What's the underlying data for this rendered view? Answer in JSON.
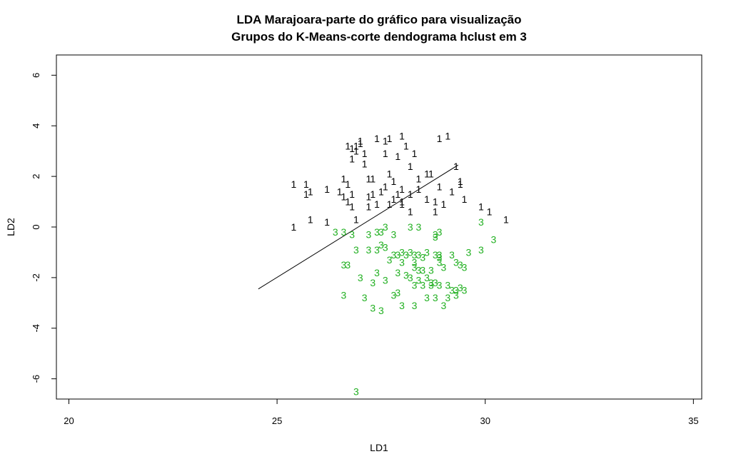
{
  "chart_data": {
    "type": "scatter",
    "title": "LDA Marajoara-parte do gráfico para visualização",
    "subtitle": "Grupos do K-Means-corte dendograma hclust em 3",
    "xlabel": "LD1",
    "ylabel": "LD2",
    "xlim": [
      19.7,
      35.2
    ],
    "ylim": [
      -6.8,
      6.8
    ],
    "x_ticks": [
      20,
      25,
      30,
      35
    ],
    "y_ticks": [
      -6,
      -4,
      -2,
      0,
      2,
      4,
      6
    ],
    "grid": false,
    "legend": "none",
    "series": [
      {
        "label": "1",
        "color": "#000000",
        "points": [
          [
            26.7,
            3.2
          ],
          [
            26.8,
            3.1
          ],
          [
            26.9,
            3.2
          ],
          [
            27.0,
            3.3
          ],
          [
            27.0,
            3.4
          ],
          [
            27.4,
            3.5
          ],
          [
            27.6,
            3.4
          ],
          [
            27.7,
            3.5
          ],
          [
            28.0,
            3.6
          ],
          [
            28.9,
            3.5
          ],
          [
            29.1,
            3.6
          ],
          [
            26.9,
            3.0
          ],
          [
            27.1,
            2.9
          ],
          [
            26.8,
            2.7
          ],
          [
            27.1,
            2.5
          ],
          [
            27.6,
            2.9
          ],
          [
            27.9,
            2.8
          ],
          [
            28.1,
            3.2
          ],
          [
            28.3,
            2.9
          ],
          [
            28.2,
            2.4
          ],
          [
            25.4,
            1.7
          ],
          [
            25.7,
            1.7
          ],
          [
            26.6,
            1.9
          ],
          [
            26.7,
            1.7
          ],
          [
            27.2,
            1.9
          ],
          [
            27.3,
            1.9
          ],
          [
            27.7,
            2.1
          ],
          [
            27.8,
            1.8
          ],
          [
            28.4,
            1.9
          ],
          [
            28.6,
            2.1
          ],
          [
            28.7,
            2.1
          ],
          [
            28.9,
            1.6
          ],
          [
            29.3,
            2.4
          ],
          [
            29.4,
            1.8
          ],
          [
            29.4,
            1.7
          ],
          [
            25.7,
            1.3
          ],
          [
            25.8,
            1.4
          ],
          [
            26.2,
            1.5
          ],
          [
            26.5,
            1.4
          ],
          [
            26.6,
            1.2
          ],
          [
            26.8,
            1.3
          ],
          [
            27.2,
            1.2
          ],
          [
            27.3,
            1.3
          ],
          [
            27.5,
            1.4
          ],
          [
            27.6,
            1.6
          ],
          [
            27.8,
            1.1
          ],
          [
            27.9,
            1.3
          ],
          [
            28.0,
            1.5
          ],
          [
            28.2,
            1.3
          ],
          [
            28.4,
            1.5
          ],
          [
            29.2,
            1.4
          ],
          [
            29.5,
            1.1
          ],
          [
            26.7,
            1.0
          ],
          [
            26.8,
            0.8
          ],
          [
            27.2,
            0.8
          ],
          [
            27.4,
            0.9
          ],
          [
            27.7,
            0.9
          ],
          [
            28.0,
            0.9
          ],
          [
            28.0,
            1.0
          ],
          [
            28.6,
            1.1
          ],
          [
            28.8,
            1.0
          ],
          [
            29.0,
            0.9
          ],
          [
            28.2,
            0.6
          ],
          [
            28.8,
            0.6
          ],
          [
            29.9,
            0.8
          ],
          [
            30.1,
            0.6
          ],
          [
            30.5,
            0.3
          ],
          [
            25.4,
            0.0
          ],
          [
            25.8,
            0.3
          ],
          [
            26.2,
            0.2
          ],
          [
            26.9,
            0.3
          ]
        ]
      },
      {
        "label": "3",
        "color": "#22b022",
        "points": [
          [
            26.4,
            -0.2
          ],
          [
            26.6,
            -0.2
          ],
          [
            26.8,
            -0.3
          ],
          [
            27.2,
            -0.3
          ],
          [
            27.4,
            -0.2
          ],
          [
            27.5,
            -0.2
          ],
          [
            27.8,
            -0.3
          ],
          [
            27.6,
            0.0
          ],
          [
            28.2,
            0.0
          ],
          [
            28.4,
            0.0
          ],
          [
            28.8,
            -0.3
          ],
          [
            28.8,
            -0.4
          ],
          [
            28.9,
            -0.2
          ],
          [
            29.9,
            0.2
          ],
          [
            30.2,
            -0.5
          ],
          [
            26.9,
            -0.9
          ],
          [
            27.2,
            -0.9
          ],
          [
            27.4,
            -0.9
          ],
          [
            27.5,
            -0.7
          ],
          [
            27.6,
            -0.8
          ],
          [
            27.8,
            -1.1
          ],
          [
            27.9,
            -1.1
          ],
          [
            28.0,
            -1.0
          ],
          [
            28.1,
            -1.1
          ],
          [
            28.2,
            -1.0
          ],
          [
            28.3,
            -1.1
          ],
          [
            28.4,
            -1.1
          ],
          [
            28.5,
            -1.2
          ],
          [
            28.6,
            -1.0
          ],
          [
            28.8,
            -1.1
          ],
          [
            28.9,
            -1.2
          ],
          [
            28.9,
            -1.1
          ],
          [
            29.2,
            -1.1
          ],
          [
            29.6,
            -1.0
          ],
          [
            29.9,
            -0.9
          ],
          [
            27.7,
            -1.3
          ],
          [
            28.3,
            -1.4
          ],
          [
            28.0,
            -1.4
          ],
          [
            28.9,
            -1.4
          ],
          [
            29.3,
            -1.4
          ],
          [
            29.4,
            -1.5
          ],
          [
            29.5,
            -1.6
          ],
          [
            26.6,
            -1.5
          ],
          [
            26.7,
            -1.5
          ],
          [
            28.3,
            -1.6
          ],
          [
            28.4,
            -1.7
          ],
          [
            28.5,
            -1.7
          ],
          [
            28.7,
            -1.7
          ],
          [
            29.0,
            -1.6
          ],
          [
            28.1,
            -1.9
          ],
          [
            28.4,
            -2.1
          ],
          [
            28.6,
            -2.0
          ],
          [
            28.7,
            -2.2
          ],
          [
            27.4,
            -1.8
          ],
          [
            27.9,
            -1.8
          ],
          [
            28.2,
            -2.0
          ],
          [
            28.8,
            -2.2
          ],
          [
            28.9,
            -2.3
          ],
          [
            27.0,
            -2.0
          ],
          [
            27.3,
            -2.2
          ],
          [
            27.6,
            -2.1
          ],
          [
            28.3,
            -2.3
          ],
          [
            28.5,
            -2.3
          ],
          [
            28.7,
            -2.3
          ],
          [
            29.1,
            -2.3
          ],
          [
            29.2,
            -2.5
          ],
          [
            29.3,
            -2.5
          ],
          [
            29.4,
            -2.4
          ],
          [
            26.6,
            -2.7
          ],
          [
            27.1,
            -2.8
          ],
          [
            27.8,
            -2.7
          ],
          [
            27.9,
            -2.6
          ],
          [
            28.6,
            -2.8
          ],
          [
            28.8,
            -2.8
          ],
          [
            29.1,
            -2.8
          ],
          [
            29.3,
            -2.7
          ],
          [
            29.5,
            -2.5
          ],
          [
            27.3,
            -3.2
          ],
          [
            27.5,
            -3.3
          ],
          [
            28.0,
            -3.1
          ],
          [
            28.3,
            -3.1
          ],
          [
            29.0,
            -3.1
          ],
          [
            26.9,
            -6.5
          ]
        ]
      }
    ],
    "line": [
      [
        24.55,
        -2.45
      ],
      [
        29.35,
        2.45
      ]
    ]
  }
}
